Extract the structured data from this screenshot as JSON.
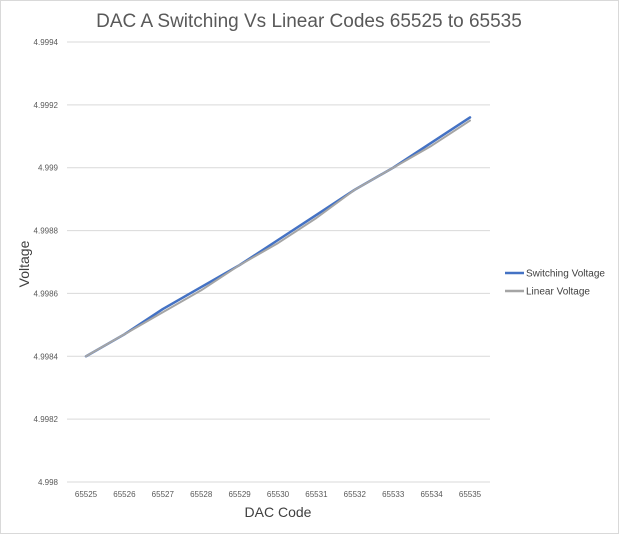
{
  "chart_data": {
    "type": "line",
    "title": "DAC A Switching Vs Linear Codes 65525 to 65535",
    "xlabel": "DAC Code",
    "ylabel": "Voltage",
    "categories": [
      "65525",
      "65526",
      "65527",
      "65528",
      "65529",
      "65530",
      "65531",
      "65532",
      "65533",
      "65534",
      "65535"
    ],
    "ylim": [
      4.998,
      4.9994
    ],
    "yticks": [
      "4.998",
      "4.9982",
      "4.9984",
      "4.9986",
      "4.9988",
      "4.999",
      "4.9992",
      "4.9994"
    ],
    "grid": true,
    "legend_position": "right",
    "series": [
      {
        "name": "Switching Voltage",
        "color": "#4472c4",
        "values": [
          4.9984,
          4.99847,
          4.99855,
          4.99862,
          4.99869,
          4.99877,
          4.99885,
          4.99893,
          4.999,
          4.99908,
          4.99916
        ]
      },
      {
        "name": "Linear Voltage",
        "color": "#a5a5a5",
        "values": [
          4.9984,
          4.99847,
          4.99854,
          4.99861,
          4.99869,
          4.99876,
          4.99884,
          4.99893,
          4.999,
          4.99907,
          4.99915
        ]
      }
    ]
  }
}
